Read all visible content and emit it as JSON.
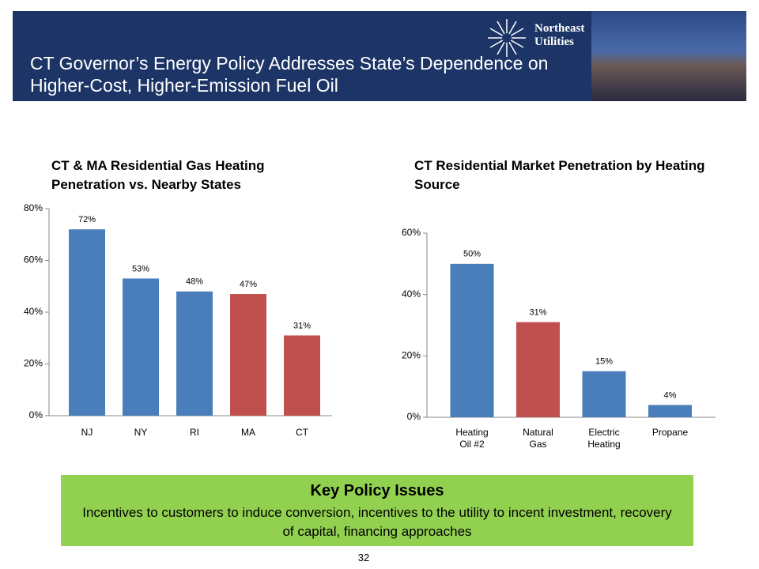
{
  "header": {
    "title": "CT Governor’s Energy Policy Addresses State’s Dependence on Higher-Cost, Higher-Emission Fuel Oil",
    "logo": "Northeast Utilities"
  },
  "chart_data": [
    {
      "type": "bar",
      "title": "CT & MA Residential Gas Heating Penetration vs. Nearby States",
      "categories": [
        "NJ",
        "NY",
        "RI",
        "MA",
        "CT"
      ],
      "values": [
        72,
        53,
        48,
        47,
        31
      ],
      "value_labels": [
        "72%",
        "53%",
        "48%",
        "47%",
        "31%"
      ],
      "colors": [
        "#4a7ebb",
        "#4a7ebb",
        "#4a7ebb",
        "#c0504d",
        "#c0504d"
      ],
      "ylim": [
        0,
        80
      ],
      "yticks": [
        {
          "value": 0,
          "label": "0%"
        },
        {
          "value": 20,
          "label": "20%"
        },
        {
          "value": 40,
          "label": "40%"
        },
        {
          "value": 60,
          "label": "60%"
        },
        {
          "value": 80,
          "label": "80%"
        }
      ],
      "grid": false
    },
    {
      "type": "bar",
      "title": "CT Residential Market Penetration by Heating Source",
      "categories": [
        "Heating Oil #2",
        "Natural Gas",
        "Electric Heating",
        "Propane"
      ],
      "values": [
        50,
        31,
        15,
        4
      ],
      "value_labels": [
        "50%",
        "31%",
        "15%",
        "4%"
      ],
      "colors": [
        "#4a7ebb",
        "#c0504d",
        "#4a7ebb",
        "#4a7ebb"
      ],
      "ylim": [
        0,
        60
      ],
      "yticks": [
        {
          "value": 0,
          "label": "0%"
        },
        {
          "value": 20,
          "label": "20%"
        },
        {
          "value": 40,
          "label": "40%"
        },
        {
          "value": 60,
          "label": "60%"
        }
      ],
      "grid": false
    }
  ],
  "policy": {
    "title": "Key Policy Issues",
    "text": "Incentives to customers to induce conversion, incentives to the utility to incent investment, recovery of capital, financing approaches"
  },
  "page_number": "32"
}
